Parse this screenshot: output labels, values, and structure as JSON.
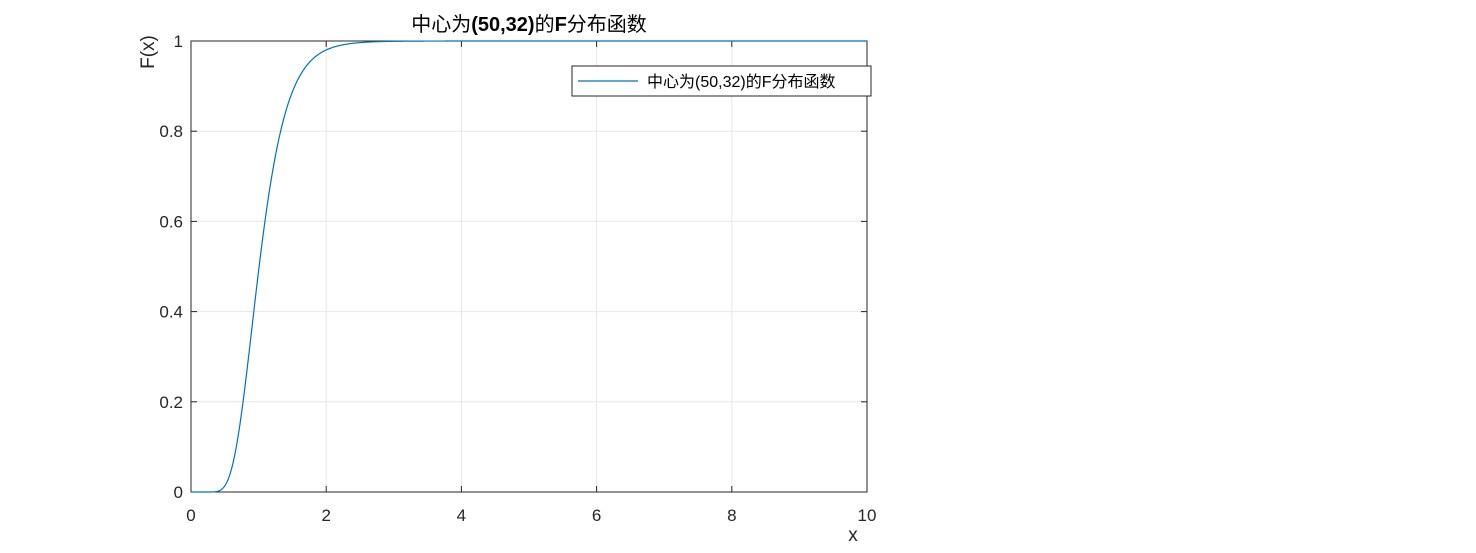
{
  "chart_data": {
    "type": "line",
    "title": "中心为(50,32)的F分布函数",
    "title_parts": {
      "prefix": "中心为",
      "params": "(50,32)",
      "middle": "的",
      "letter": "F",
      "suffix": "分布函数"
    },
    "xlabel": "x",
    "ylabel": "F(x)",
    "xlim": [
      0,
      10
    ],
    "ylim": [
      0,
      1
    ],
    "xticks": [
      0,
      2,
      4,
      6,
      8,
      10
    ],
    "xtick_labels": [
      "0",
      "2",
      "4",
      "6",
      "8",
      "10"
    ],
    "yticks": [
      0,
      0.2,
      0.4,
      0.6,
      0.8,
      1
    ],
    "ytick_labels": [
      "0",
      "0.2",
      "0.4",
      "0.6",
      "0.8",
      "1"
    ],
    "grid": true,
    "legend_position": "top-right",
    "series": [
      {
        "name": "中心为(50,32)的F分布函数",
        "color": "#0072BD",
        "distribution": "F",
        "df1": 50,
        "df2": 32,
        "x_start": 0,
        "x_end": 10
      }
    ]
  },
  "colors": {
    "line": "#0072BD",
    "axes": "#262626",
    "grid": "#e6e6e6",
    "background": "#ffffff"
  }
}
